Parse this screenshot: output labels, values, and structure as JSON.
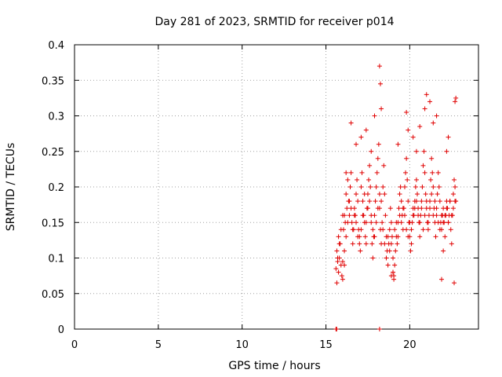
{
  "chart_data": {
    "type": "scatter",
    "title": "Day 281 of 2023, SRMTID for receiver p014",
    "xlabel": "GPS time / hours",
    "ylabel": "SRMTID / TECUs",
    "xlim": [
      0,
      24.1
    ],
    "ylim": [
      0,
      0.4
    ],
    "xticks": [
      0,
      5,
      10,
      15,
      20
    ],
    "yticks": [
      0,
      0.05,
      0.1,
      0.15,
      0.2,
      0.25,
      0.3,
      0.35,
      0.4
    ],
    "ytick_labels": [
      "0",
      "0.05",
      "0.1",
      "0.15",
      "0.2",
      "0.25",
      "0.3",
      "0.35",
      "0.4"
    ],
    "grid": true,
    "marker": "+",
    "series": [
      {
        "name": "SRMTID",
        "color": "#e00000",
        "x": [
          15.6,
          15.62,
          15.64,
          18.2,
          15.6,
          15.65,
          15.7,
          15.75,
          15.8,
          15.85,
          15.9,
          15.95,
          16.0,
          16.05,
          16.1,
          16.15,
          16.2,
          16.25,
          16.3,
          16.35,
          16.4,
          16.45,
          16.5,
          16.55,
          16.6,
          16.65,
          16.7,
          16.75,
          16.8,
          16.85,
          16.9,
          16.95,
          17.0,
          17.05,
          17.1,
          17.15,
          17.2,
          17.25,
          17.3,
          17.35,
          17.4,
          17.45,
          17.5,
          17.55,
          17.6,
          17.65,
          17.7,
          17.75,
          17.8,
          17.85,
          17.9,
          17.95,
          18.0,
          18.05,
          18.1,
          18.15,
          18.2,
          18.25,
          18.3,
          18.35,
          18.4,
          18.45,
          18.5,
          18.55,
          18.6,
          18.65,
          18.7,
          18.75,
          18.8,
          18.85,
          18.9,
          18.95,
          19.0,
          19.05,
          19.1,
          19.15,
          19.2,
          19.25,
          19.3,
          19.35,
          19.4,
          19.45,
          19.5,
          19.55,
          19.6,
          19.65,
          19.7,
          19.75,
          19.8,
          19.85,
          19.9,
          19.95,
          20.0,
          20.05,
          20.1,
          20.15,
          20.2,
          20.25,
          20.3,
          20.35,
          20.4,
          20.45,
          20.5,
          20.55,
          20.6,
          20.65,
          20.7,
          20.75,
          20.8,
          20.85,
          20.9,
          20.95,
          21.0,
          21.05,
          21.1,
          21.15,
          21.2,
          21.25,
          21.3,
          21.35,
          21.4,
          21.45,
          21.5,
          21.55,
          21.6,
          21.65,
          21.7,
          21.75,
          21.8,
          21.85,
          21.9,
          21.95,
          22.0,
          22.05,
          22.1,
          22.15,
          22.2,
          22.25,
          22.3,
          22.35,
          22.4,
          22.45,
          22.5,
          22.55,
          22.6,
          22.65,
          22.7,
          22.75,
          15.7,
          15.8,
          15.9,
          16.0,
          16.1,
          16.2,
          16.3,
          16.4,
          16.5,
          16.6,
          16.7,
          16.8,
          16.9,
          17.0,
          17.1,
          17.2,
          17.3,
          17.4,
          17.5,
          17.6,
          17.7,
          17.8,
          17.9,
          18.0,
          18.1,
          18.2,
          18.3,
          18.4,
          18.5,
          18.6,
          18.7,
          18.8,
          18.9,
          19.0,
          19.1,
          19.2,
          19.3,
          19.4,
          19.5,
          19.6,
          19.7,
          19.8,
          19.9,
          20.0,
          20.1,
          20.2,
          20.3,
          20.4,
          20.5,
          20.6,
          20.7,
          20.8,
          20.9,
          21.0,
          21.1,
          21.2,
          21.3,
          21.4,
          21.5,
          21.6,
          21.7,
          21.8,
          21.9,
          22.0,
          22.1,
          22.2,
          22.3,
          22.4,
          22.5,
          22.6,
          22.7,
          16.2,
          16.8,
          17.4,
          17.9,
          18.2,
          18.25,
          18.3,
          19.8,
          19.9,
          20.6,
          20.9,
          21.0,
          21.2,
          21.6,
          22.3,
          22.7,
          22.75,
          15.65,
          15.75,
          16.0,
          16.1,
          18.9,
          19.0,
          19.05,
          21.9,
          22.0,
          22.65,
          16.5,
          17.1,
          17.7,
          19.3,
          20.2,
          20.4,
          21.4,
          22.2
        ],
        "y": [
          0.0,
          0.0,
          0.0,
          0.0,
          0.085,
          0.11,
          0.095,
          0.13,
          0.1,
          0.12,
          0.09,
          0.075,
          0.07,
          0.14,
          0.16,
          0.15,
          0.19,
          0.17,
          0.21,
          0.18,
          0.16,
          0.2,
          0.22,
          0.15,
          0.12,
          0.14,
          0.17,
          0.16,
          0.19,
          0.21,
          0.18,
          0.14,
          0.13,
          0.11,
          0.2,
          0.22,
          0.18,
          0.16,
          0.15,
          0.13,
          0.12,
          0.17,
          0.19,
          0.21,
          0.23,
          0.2,
          0.15,
          0.12,
          0.1,
          0.13,
          0.16,
          0.18,
          0.2,
          0.22,
          0.24,
          0.26,
          0.17,
          0.14,
          0.12,
          0.15,
          0.2,
          0.23,
          0.19,
          0.16,
          0.13,
          0.11,
          0.09,
          0.12,
          0.14,
          0.17,
          0.15,
          0.13,
          0.08,
          0.075,
          0.09,
          0.11,
          0.13,
          0.12,
          0.15,
          0.17,
          0.19,
          0.2,
          0.18,
          0.16,
          0.14,
          0.17,
          0.2,
          0.22,
          0.24,
          0.21,
          0.18,
          0.15,
          0.13,
          0.11,
          0.12,
          0.15,
          0.17,
          0.16,
          0.18,
          0.2,
          0.21,
          0.19,
          0.17,
          0.15,
          0.13,
          0.16,
          0.18,
          0.2,
          0.23,
          0.25,
          0.22,
          0.19,
          0.17,
          0.15,
          0.14,
          0.16,
          0.18,
          0.21,
          0.24,
          0.22,
          0.2,
          0.17,
          0.15,
          0.13,
          0.16,
          0.19,
          0.22,
          0.2,
          0.18,
          0.15,
          0.14,
          0.16,
          0.17,
          0.15,
          0.13,
          0.16,
          0.18,
          0.17,
          0.15,
          0.16,
          0.18,
          0.14,
          0.12,
          0.16,
          0.19,
          0.21,
          0.2,
          0.18,
          0.1,
          0.12,
          0.14,
          0.16,
          0.11,
          0.13,
          0.15,
          0.18,
          0.17,
          0.14,
          0.16,
          0.15,
          0.13,
          0.12,
          0.14,
          0.16,
          0.19,
          0.15,
          0.17,
          0.18,
          0.16,
          0.14,
          0.13,
          0.15,
          0.17,
          0.19,
          0.18,
          0.14,
          0.12,
          0.1,
          0.13,
          0.11,
          0.12,
          0.1,
          0.14,
          0.15,
          0.13,
          0.16,
          0.15,
          0.17,
          0.16,
          0.14,
          0.13,
          0.15,
          0.14,
          0.16,
          0.17,
          0.18,
          0.16,
          0.15,
          0.17,
          0.14,
          0.16,
          0.18,
          0.15,
          0.17,
          0.19,
          0.16,
          0.18,
          0.17,
          0.15,
          0.14,
          0.16,
          0.15,
          0.16,
          0.17,
          0.15,
          0.18,
          0.16,
          0.17,
          0.18,
          0.22,
          0.26,
          0.28,
          0.3,
          0.37,
          0.345,
          0.31,
          0.305,
          0.28,
          0.285,
          0.31,
          0.33,
          0.32,
          0.3,
          0.27,
          0.32,
          0.325,
          0.065,
          0.08,
          0.095,
          0.09,
          0.075,
          0.08,
          0.07,
          0.07,
          0.11,
          0.065,
          0.29,
          0.27,
          0.25,
          0.26,
          0.27,
          0.25,
          0.29,
          0.25
        ]
      }
    ]
  }
}
